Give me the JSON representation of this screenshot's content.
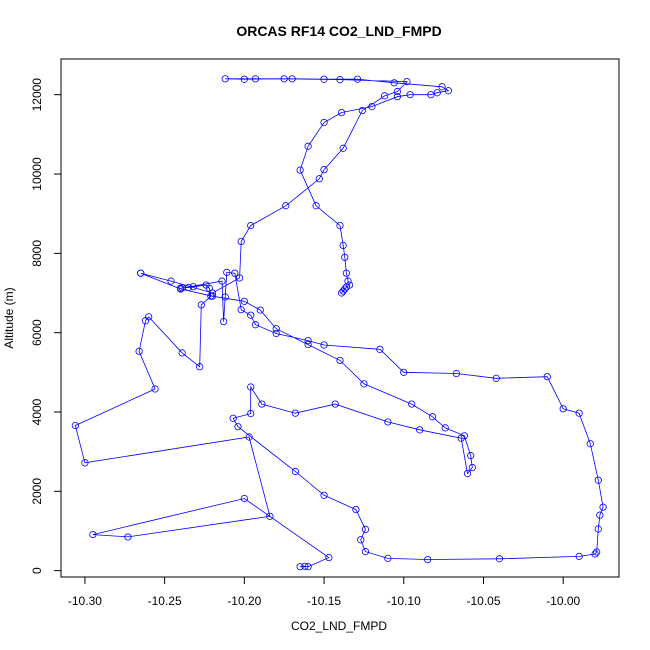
{
  "chart_data": {
    "type": "line",
    "title": "ORCAS RF14 CO2_LND_FMPD",
    "xlabel": "CO2_LND_FMPD",
    "ylabel": "Altitude (m)",
    "xlim": [
      -10.315,
      -9.965
    ],
    "ylim": [
      -160,
      12900
    ],
    "x_ticks": [
      -10.3,
      -10.25,
      -10.2,
      -10.15,
      -10.1,
      -10.05,
      -10.0
    ],
    "x_tick_labels": [
      "-10.30",
      "-10.25",
      "-10.20",
      "-10.15",
      "-10.10",
      "-10.05",
      "-10.00"
    ],
    "y_ticks": [
      0,
      2000,
      4000,
      6000,
      8000,
      10000,
      12000
    ],
    "y_tick_labels": [
      "0",
      "2000",
      "4000",
      "6000",
      "8000",
      "10000",
      "12000"
    ],
    "grid": false,
    "color": "#0000ff",
    "marker": "open-circle",
    "series": [
      {
        "x": [
          -10.165,
          -10.162,
          -10.16,
          -10.147,
          -10.2,
          -10.295,
          -10.273,
          -10.184,
          -10.197,
          -10.3,
          -10.306,
          -10.256,
          -10.266,
          -10.262,
          -10.26,
          -10.239,
          -10.228,
          -10.227,
          -10.221,
          -10.222,
          -10.224,
          -10.232,
          -10.235,
          -10.239,
          -10.24,
          -10.214,
          -10.213,
          -10.212,
          -10.211,
          -10.206,
          -10.202,
          -10.196,
          -10.193,
          -10.18,
          -10.16,
          -10.15,
          -10.115,
          -10.1,
          -10.067,
          -10.042,
          -10.01,
          -10.0,
          -9.99,
          -9.983,
          -9.978,
          -9.975,
          -9.977,
          -9.978,
          -9.979,
          -9.98,
          -9.99,
          -10.04,
          -10.085,
          -10.11,
          -10.124,
          -10.127,
          -10.124,
          -10.13,
          -10.15,
          -10.168,
          -10.204,
          -10.207,
          -10.196,
          -10.196,
          -10.189,
          -10.168,
          -10.143,
          -10.11,
          -10.09,
          -10.064,
          -10.06,
          -10.057,
          -10.058,
          -10.062,
          -10.074,
          -10.082,
          -10.095,
          -10.125,
          -10.14,
          -10.16,
          -10.18,
          -10.19,
          -10.2,
          -10.22,
          -10.24,
          -10.265,
          -10.265,
          -10.246,
          -10.22,
          -10.203,
          -10.202,
          -10.196,
          -10.174,
          -10.153,
          -10.15,
          -10.138,
          -10.126,
          -10.112,
          -10.104,
          -10.098,
          -10.14,
          -10.175,
          -10.2,
          -10.212,
          -10.193,
          -10.17,
          -10.15,
          -10.129,
          -10.106,
          -10.076,
          -10.072,
          -10.079,
          -10.083,
          -10.096,
          -10.104,
          -10.12,
          -10.139,
          -10.15,
          -10.16,
          -10.165,
          -10.155,
          -10.14,
          -10.138,
          -10.137,
          -10.136,
          -10.135,
          -10.134,
          -10.136,
          -10.137,
          -10.138,
          -10.139
        ],
        "y": [
          100,
          110,
          100,
          330,
          1820,
          910,
          850,
          1370,
          3370,
          2720,
          3660,
          4580,
          5530,
          6300,
          6400,
          5490,
          5140,
          6700,
          6920,
          7120,
          7200,
          7160,
          7140,
          7130,
          7120,
          7300,
          6280,
          6900,
          7520,
          7500,
          6580,
          6440,
          6200,
          5980,
          5800,
          5690,
          5580,
          5000,
          4970,
          4850,
          4890,
          4080,
          3970,
          3200,
          2280,
          1600,
          1400,
          1050,
          470,
          420,
          360,
          300,
          280,
          310,
          480,
          780,
          1040,
          1540,
          1900,
          2500,
          3630,
          3840,
          3960,
          4630,
          4200,
          3970,
          4200,
          3750,
          3550,
          3340,
          2450,
          2600,
          2900,
          3400,
          3600,
          3880,
          4200,
          4710,
          5300,
          5700,
          6100,
          6570,
          6790,
          6920,
          7100,
          7500,
          7500,
          7300,
          7000,
          7380,
          8300,
          8700,
          9200,
          9880,
          10110,
          10650,
          11600,
          11970,
          12080,
          12330,
          12380,
          12400,
          12390,
          12400,
          12400,
          12400,
          12390,
          12390,
          12300,
          12200,
          12100,
          12050,
          12000,
          12000,
          11950,
          11700,
          11550,
          11300,
          10700,
          10100,
          9200,
          8700,
          8200,
          7900,
          7500,
          7300,
          7200,
          7150,
          7100,
          7050,
          7000
        ]
      }
    ]
  }
}
